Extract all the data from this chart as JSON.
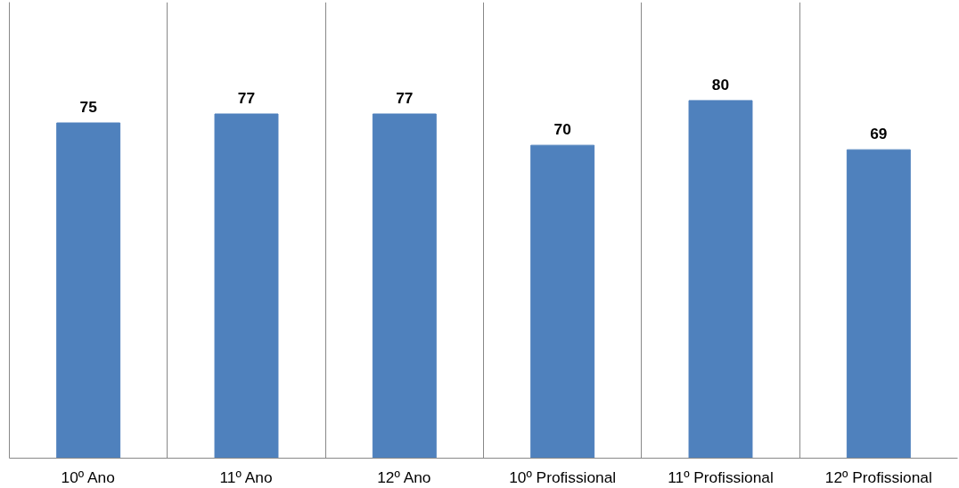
{
  "chart_data": {
    "type": "bar",
    "categories": [
      "10º Ano",
      "11º Ano",
      "12º Ano",
      "10º Profissional",
      "11º Profissional",
      "12º Profissional"
    ],
    "values": [
      75,
      77,
      77,
      70,
      80,
      69
    ],
    "color": "#4f81bd",
    "ylim": [
      0,
      102
    ],
    "data_labels": true,
    "grid": "x",
    "tick_labels": "x"
  }
}
